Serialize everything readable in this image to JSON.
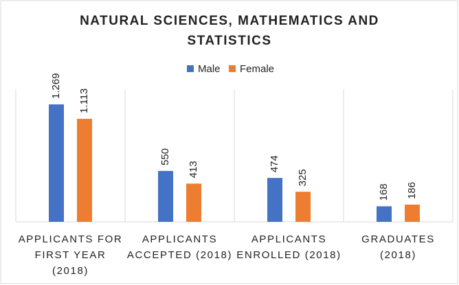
{
  "chart_data": {
    "type": "bar",
    "title": "NATURAL SCIENCES, MATHEMATICS AND STATISTICS",
    "categories": [
      "APPLICANTS FOR FIRST YEAR (2018)",
      "APPLICANTS ACCEPTED (2018)",
      "APPLICANTS ENROLLED (2018)",
      "GRADUATES (2018)"
    ],
    "series": [
      {
        "name": "Male",
        "color": "#4472c4",
        "values": [
          1269,
          550,
          474,
          168
        ],
        "value_labels": [
          "1.269",
          "550",
          "474",
          "168"
        ]
      },
      {
        "name": "Female",
        "color": "#ed7d31",
        "values": [
          1113,
          413,
          325,
          186
        ],
        "value_labels": [
          "1.113",
          "413",
          "325",
          "186"
        ]
      }
    ],
    "legend": "top",
    "grid": true
  }
}
